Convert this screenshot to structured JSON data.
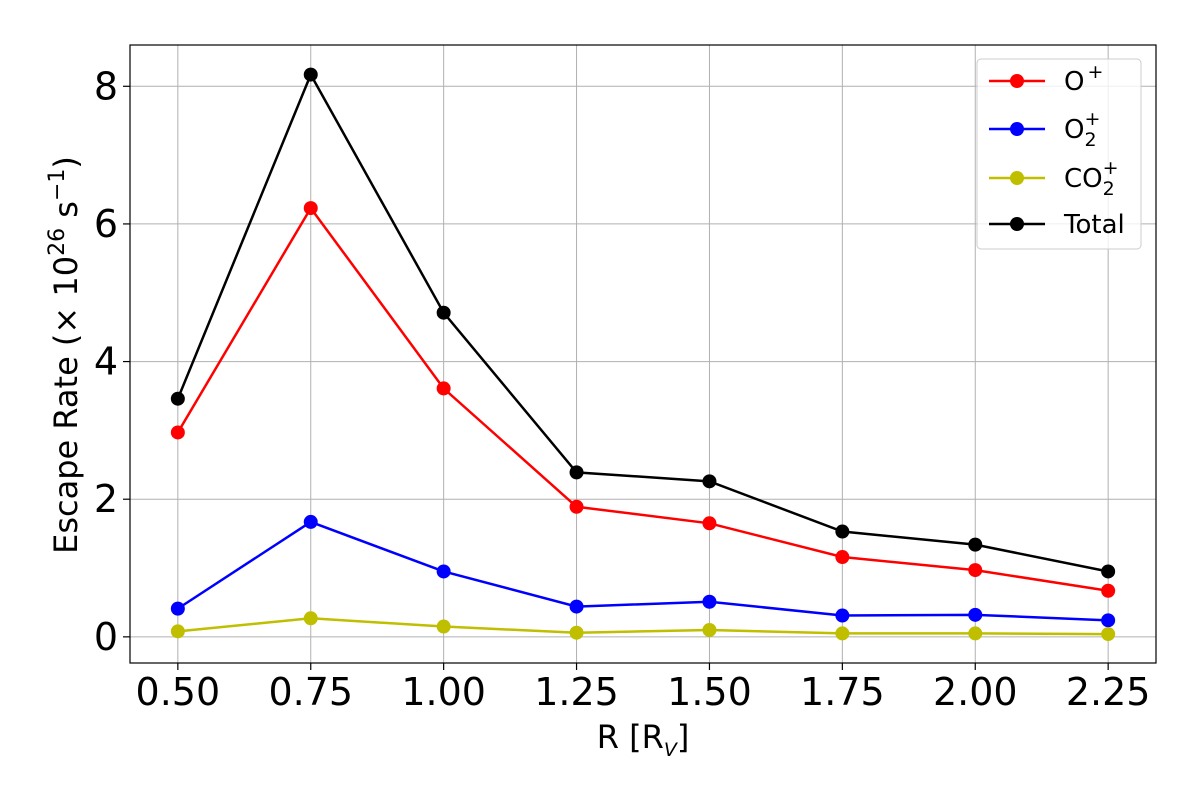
{
  "chart_data": {
    "type": "line",
    "xlabel": {
      "main": "R [R",
      "sub": "V",
      "close": "]"
    },
    "ylabel": {
      "main": "Escape Rate (× 10",
      "exp": "26",
      "unit": " s",
      "unit_exp": "−1",
      "close": ")"
    },
    "x": [
      0.5,
      0.75,
      1.0,
      1.25,
      1.5,
      1.75,
      2.0,
      2.25
    ],
    "x_tick_labels": [
      "0.50",
      "0.75",
      "1.00",
      "1.25",
      "1.50",
      "1.75",
      "2.00",
      "2.25"
    ],
    "y_ticks": [
      0,
      2,
      4,
      6,
      8
    ],
    "y_tick_labels": [
      "0",
      "2",
      "4",
      "6",
      "8"
    ],
    "xlim": [
      0.41,
      2.34
    ],
    "ylim": [
      -0.38,
      8.6
    ],
    "grid": true,
    "legend_position": "top-right",
    "series": [
      {
        "id": "o",
        "name": "O",
        "name_sup": "+",
        "name_sub": "",
        "color": "#ff0000",
        "values": [
          2.97,
          6.23,
          3.61,
          1.89,
          1.65,
          1.16,
          0.97,
          0.67
        ]
      },
      {
        "id": "o2",
        "name": "O",
        "name_sup": "+",
        "name_sub": "2",
        "color": "#0000ff",
        "values": [
          0.41,
          1.67,
          0.95,
          0.44,
          0.51,
          0.31,
          0.32,
          0.24
        ]
      },
      {
        "id": "co2",
        "name": "CO",
        "name_sup": "+",
        "name_sub": "2",
        "color": "#bfbf00",
        "values": [
          0.08,
          0.27,
          0.15,
          0.06,
          0.1,
          0.05,
          0.05,
          0.04
        ]
      },
      {
        "id": "total",
        "name": "Total",
        "name_sup": "",
        "name_sub": "",
        "color": "#000000",
        "values": [
          3.46,
          8.17,
          4.71,
          2.39,
          2.26,
          1.53,
          1.34,
          0.95
        ]
      }
    ]
  }
}
